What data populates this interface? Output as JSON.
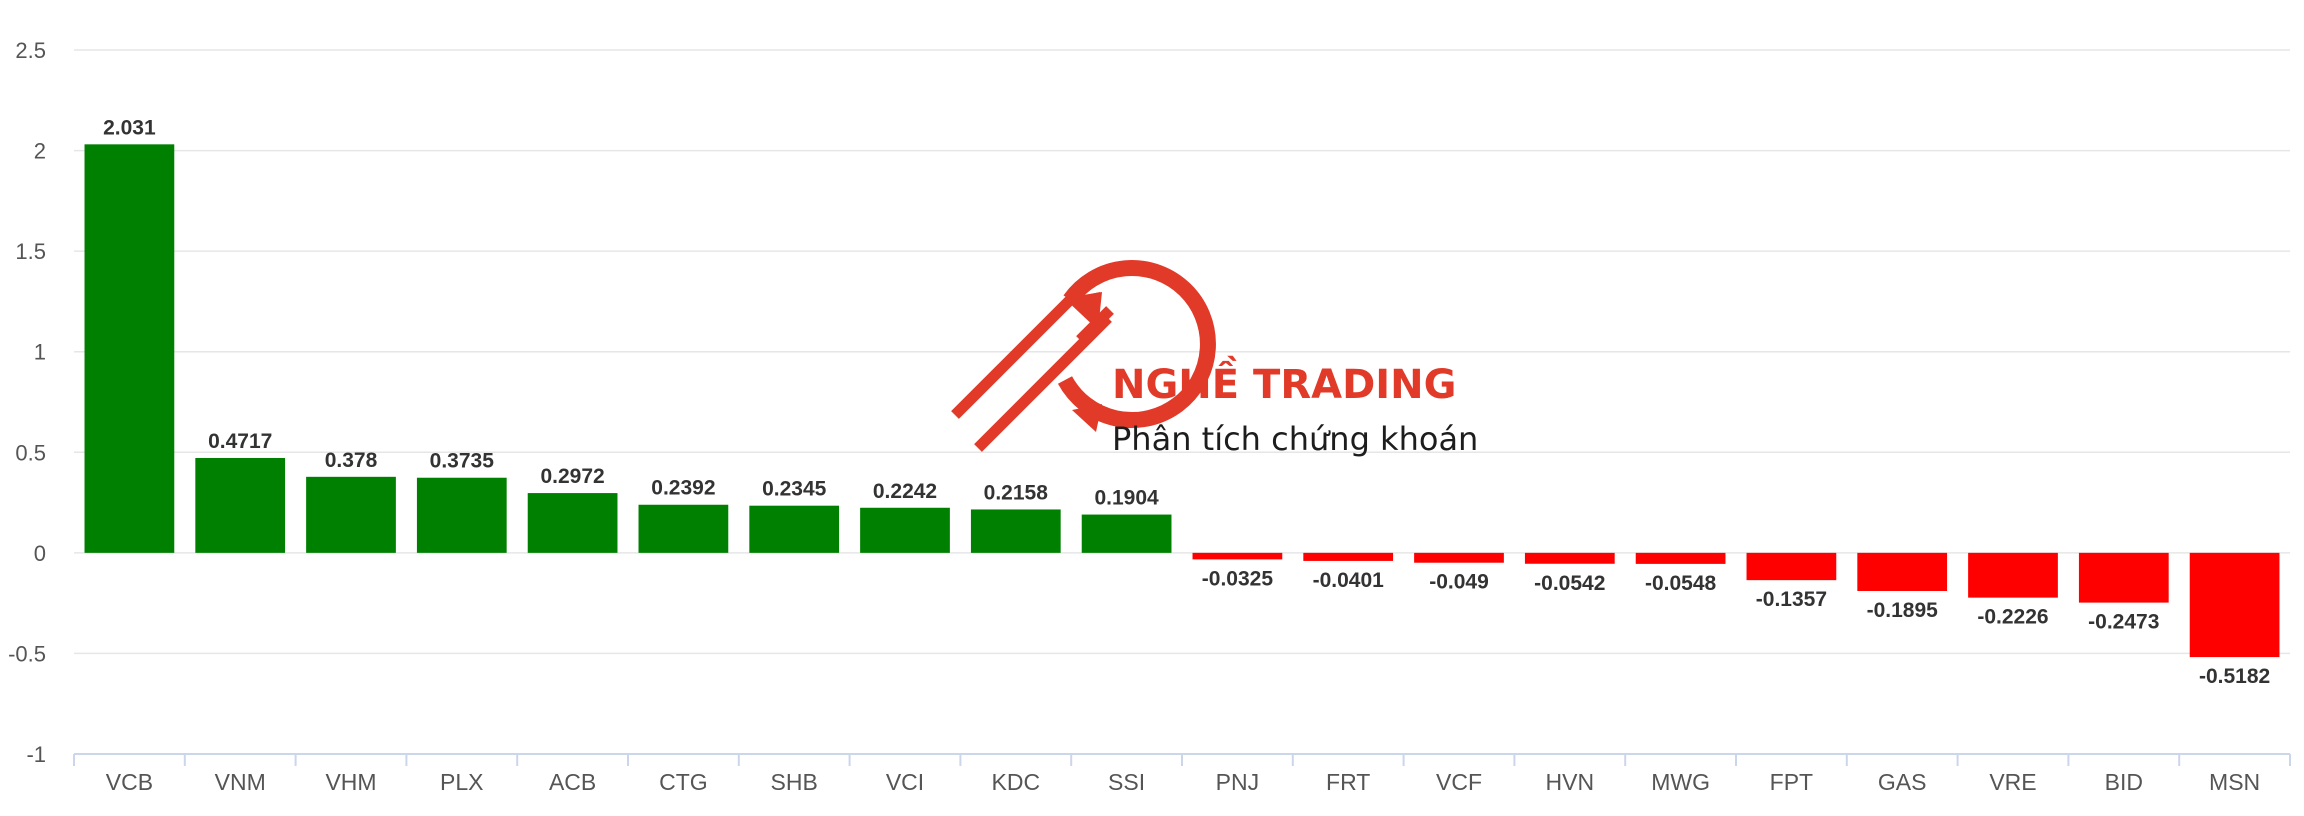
{
  "chart_data": {
    "type": "bar",
    "categories": [
      "VCB",
      "VNM",
      "VHM",
      "PLX",
      "ACB",
      "CTG",
      "SHB",
      "VCI",
      "KDC",
      "SSI",
      "PNJ",
      "FRT",
      "VCF",
      "HVN",
      "MWG",
      "FPT",
      "GAS",
      "VRE",
      "BID",
      "MSN"
    ],
    "values": [
      2.031,
      0.4717,
      0.378,
      0.3735,
      0.2972,
      0.2392,
      0.2345,
      0.2242,
      0.2158,
      0.1904,
      -0.0325,
      -0.0401,
      -0.049,
      -0.0542,
      -0.0548,
      -0.1357,
      -0.1895,
      -0.2226,
      -0.2473,
      -0.5182
    ],
    "value_labels": [
      "2.031",
      "0.4717",
      "0.378",
      "0.3735",
      "0.2972",
      "0.2392",
      "0.2345",
      "0.2242",
      "0.2158",
      "0.1904",
      "-0.0325",
      "-0.0401",
      "-0.049",
      "-0.0542",
      "-0.0548",
      "-0.1357",
      "-0.1895",
      "-0.2226",
      "-0.2473",
      "-0.5182"
    ],
    "yticks": [
      "2.5",
      "2",
      "1.5",
      "1",
      "0.5",
      "0",
      "-0.5",
      "-1"
    ],
    "ylim": [
      -1,
      2.5
    ],
    "grid": true,
    "legend": "none",
    "colors": {
      "positive": "#008000",
      "negative": "#ff0000",
      "grid": "#e6e6e6",
      "axis": "#ccd6eb"
    }
  },
  "watermark": {
    "title": "NGHỀ TRADING",
    "subtitle": "Phân tích chứng khoán",
    "color": "#e0301e"
  }
}
